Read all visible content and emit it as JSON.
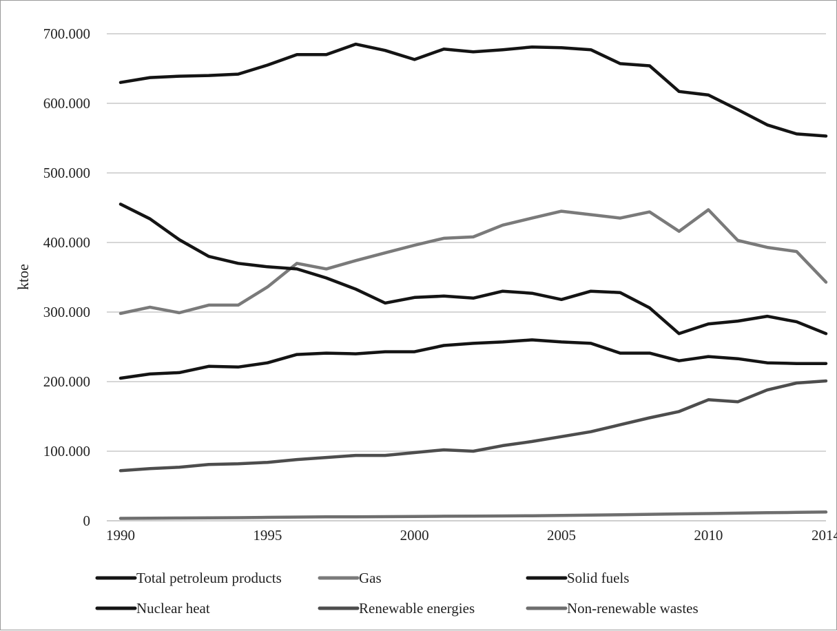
{
  "chart_data": {
    "type": "line",
    "title": "",
    "xlabel": "",
    "ylabel": "ktoe",
    "ylim": [
      0,
      700000
    ],
    "yticks": [
      0,
      100000,
      200000,
      300000,
      400000,
      500000,
      600000,
      700000
    ],
    "ytick_labels": [
      "0",
      "100.000",
      "200.000",
      "300.000",
      "400.000",
      "500.000",
      "600.000",
      "700.000"
    ],
    "xlim": [
      1990,
      2014
    ],
    "xticks": [
      1990,
      1995,
      2000,
      2005,
      2010,
      2014
    ],
    "xtick_labels": [
      "1990",
      "1995",
      "2000",
      "2005",
      "2010",
      "2014"
    ],
    "grid": "horizontal",
    "legend_position": "bottom",
    "x": [
      1990,
      1991,
      1992,
      1993,
      1994,
      1995,
      1996,
      1997,
      1998,
      1999,
      2000,
      2001,
      2002,
      2003,
      2004,
      2005,
      2006,
      2007,
      2008,
      2009,
      2010,
      2011,
      2012,
      2013,
      2014
    ],
    "series": [
      {
        "name": "Total petroleum products",
        "color": "#141414",
        "values": [
          630000,
          637000,
          639000,
          640000,
          642000,
          655000,
          670000,
          670000,
          685000,
          676000,
          663000,
          678000,
          674000,
          677000,
          681000,
          680000,
          677000,
          657000,
          654000,
          617000,
          612000,
          591000,
          569000,
          556000,
          553000
        ]
      },
      {
        "name": "Gas",
        "color": "#7a7a7a",
        "values": [
          298000,
          307000,
          299000,
          310000,
          310000,
          336000,
          370000,
          362000,
          374000,
          385000,
          396000,
          406000,
          408000,
          425000,
          435000,
          445000,
          440000,
          435000,
          444000,
          416000,
          447000,
          403000,
          393000,
          387000,
          343000
        ]
      },
      {
        "name": "Solid fuels",
        "color": "#141414",
        "values": [
          455000,
          434000,
          404000,
          380000,
          370000,
          365000,
          362000,
          349000,
          333000,
          313000,
          321000,
          323000,
          320000,
          330000,
          327000,
          318000,
          330000,
          328000,
          306000,
          269000,
          283000,
          287000,
          294000,
          286000,
          269000
        ]
      },
      {
        "name": "Nuclear heat",
        "color": "#141414",
        "values": [
          205000,
          211000,
          213000,
          222000,
          221000,
          227000,
          239000,
          241000,
          240000,
          243000,
          243000,
          252000,
          255000,
          257000,
          260000,
          257000,
          255000,
          241000,
          241000,
          230000,
          236000,
          233000,
          227000,
          226000,
          226000
        ]
      },
      {
        "name": "Renewable energies",
        "color": "#4d4d4d",
        "values": [
          72000,
          75000,
          77000,
          81000,
          82000,
          84000,
          88000,
          91000,
          94000,
          94000,
          98000,
          102000,
          100000,
          108000,
          114000,
          121000,
          128000,
          138000,
          148000,
          157000,
          174000,
          171000,
          188000,
          198000,
          201000
        ]
      },
      {
        "name": "Non-renewable wastes",
        "color": "#6e6e6e",
        "values": [
          3500,
          3700,
          4000,
          4200,
          4500,
          5000,
          5300,
          5600,
          5700,
          5900,
          6200,
          6500,
          6700,
          6900,
          7200,
          7600,
          8100,
          8700,
          9300,
          9900,
          10400,
          11000,
          11600,
          12100,
          12600
        ]
      }
    ]
  }
}
